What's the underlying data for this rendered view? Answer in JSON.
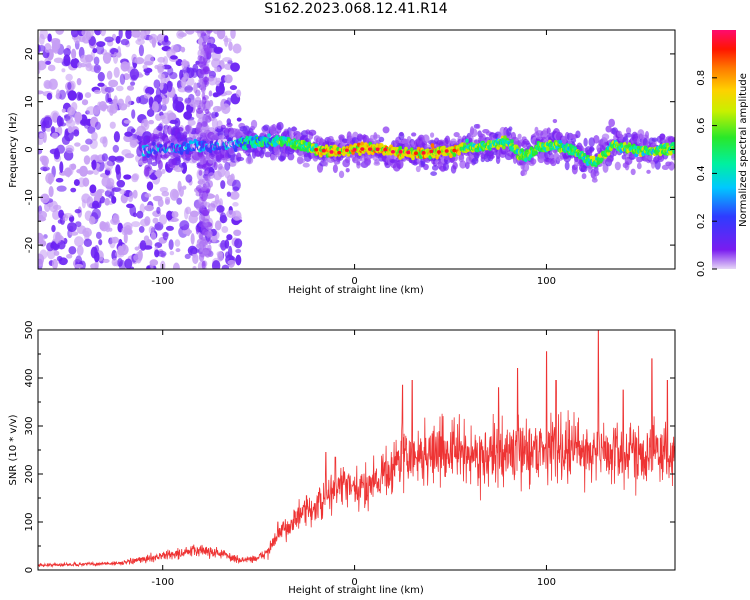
{
  "page": {
    "title": "S162.2023.068.12.41.R14"
  },
  "chart_data": [
    {
      "type": "heatmap",
      "xlabel": "Height of straight line (km)",
      "ylabel": "Frequency (Hz)",
      "xlim": [
        -165,
        167
      ],
      "ylim": [
        -25,
        25
      ],
      "xticks": [
        -100,
        0,
        100
      ],
      "yticks": [
        -20,
        -10,
        0,
        10,
        20
      ],
      "grid": false,
      "colorbar": {
        "label": "Normalized spectral amplitude",
        "range": [
          0.0,
          1.0
        ],
        "ticks": [
          "0.0",
          "0.2",
          "0.4",
          "0.6",
          "0.8"
        ],
        "colormap": [
          "#e6d6f6",
          "#7a1cf0",
          "#2e3cff",
          "#00c8ff",
          "#00f0a0",
          "#29e82a",
          "#c8f000",
          "#ffd000",
          "#ff7a00",
          "#ff1500",
          "#ff0a6e"
        ]
      },
      "ridge_center_hz": [
        [
          -110,
          0.0
        ],
        [
          -90,
          0.3
        ],
        [
          -70,
          1.0
        ],
        [
          -55,
          1.5
        ],
        [
          -40,
          1.8
        ],
        [
          -30,
          1.2
        ],
        [
          -20,
          0.0
        ],
        [
          -10,
          -0.6
        ],
        [
          0,
          0.1
        ],
        [
          10,
          0.3
        ],
        [
          20,
          -0.4
        ],
        [
          30,
          -0.8
        ],
        [
          40,
          -0.6
        ],
        [
          50,
          -0.3
        ],
        [
          60,
          0.5
        ],
        [
          70,
          0.8
        ],
        [
          80,
          1.5
        ],
        [
          85,
          -0.5
        ],
        [
          90,
          -1.5
        ],
        [
          95,
          0.5
        ],
        [
          105,
          1.0
        ],
        [
          115,
          -0.5
        ],
        [
          125,
          -3.0
        ],
        [
          135,
          1.0
        ],
        [
          145,
          0.0
        ],
        [
          155,
          -0.5
        ],
        [
          167,
          0.5
        ]
      ],
      "strongest_amplitude_range": [
        -20,
        55
      ]
    },
    {
      "type": "line",
      "xlabel": "Height of straight line (km)",
      "ylabel": "SNR (10 * v/v)",
      "xlim": [
        -165,
        167
      ],
      "ylim": [
        0,
        500
      ],
      "xticks": [
        -100,
        0,
        100
      ],
      "yticks": [
        0,
        100,
        200,
        300,
        400,
        500
      ],
      "grid": false,
      "series": [
        {
          "color": "#ee3333",
          "points": [
            [
              -165,
              10
            ],
            [
              -140,
              12
            ],
            [
              -120,
              15
            ],
            [
              -110,
              22
            ],
            [
              -100,
              30
            ],
            [
              -90,
              35
            ],
            [
              -80,
              42
            ],
            [
              -75,
              38
            ],
            [
              -70,
              35
            ],
            [
              -60,
              20
            ],
            [
              -50,
              25
            ],
            [
              -45,
              40
            ],
            [
              -40,
              70
            ],
            [
              -35,
              90
            ],
            [
              -30,
              110
            ],
            [
              -20,
              130
            ],
            [
              -15,
              150
            ],
            [
              -10,
              170
            ],
            [
              -5,
              180
            ],
            [
              0,
              160
            ],
            [
              5,
              170
            ],
            [
              10,
              190
            ],
            [
              15,
              200
            ],
            [
              20,
              215
            ],
            [
              25,
              240
            ],
            [
              30,
              230
            ],
            [
              40,
              245
            ],
            [
              50,
              250
            ],
            [
              60,
              240
            ],
            [
              70,
              235
            ],
            [
              80,
              245
            ],
            [
              90,
              250
            ],
            [
              100,
              255
            ],
            [
              110,
              255
            ],
            [
              120,
              250
            ],
            [
              130,
              245
            ],
            [
              140,
              240
            ],
            [
              150,
              250
            ],
            [
              160,
              245
            ],
            [
              167,
              240
            ]
          ],
          "peaks": [
            [
              -40,
              100
            ],
            [
              -25,
              155
            ],
            [
              -15,
              245
            ],
            [
              -10,
              235
            ],
            [
              25,
              385
            ],
            [
              30,
              395
            ],
            [
              75,
              380
            ],
            [
              85,
              420
            ],
            [
              100,
              455
            ],
            [
              105,
              395
            ],
            [
              127,
              500
            ],
            [
              140,
              375
            ],
            [
              155,
              440
            ],
            [
              163,
              395
            ]
          ]
        }
      ]
    }
  ]
}
